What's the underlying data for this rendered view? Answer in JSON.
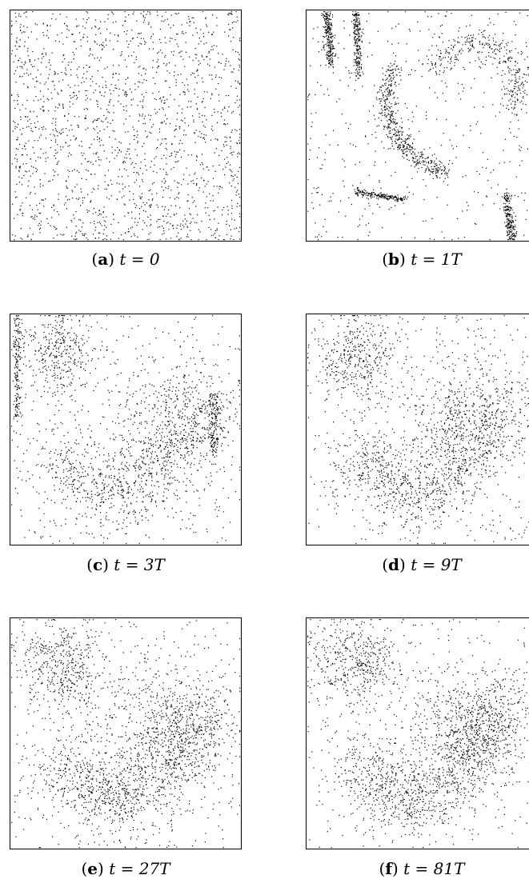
{
  "figure": {
    "panels": [
      {
        "id": "a",
        "letter": "a",
        "eq": "t = 0"
      },
      {
        "id": "b",
        "letter": "b",
        "eq": "t = 1T"
      },
      {
        "id": "c",
        "letter": "c",
        "eq": "t = 3T"
      },
      {
        "id": "d",
        "letter": "d",
        "eq": "t = 9T"
      },
      {
        "id": "e",
        "letter": "e",
        "eq": "t = 27T"
      },
      {
        "id": "f",
        "letter": "f",
        "eq": "t = 81T"
      }
    ]
  },
  "colors": {
    "point": "#000000",
    "frame": "#000000",
    "background": "#ffffff"
  }
}
